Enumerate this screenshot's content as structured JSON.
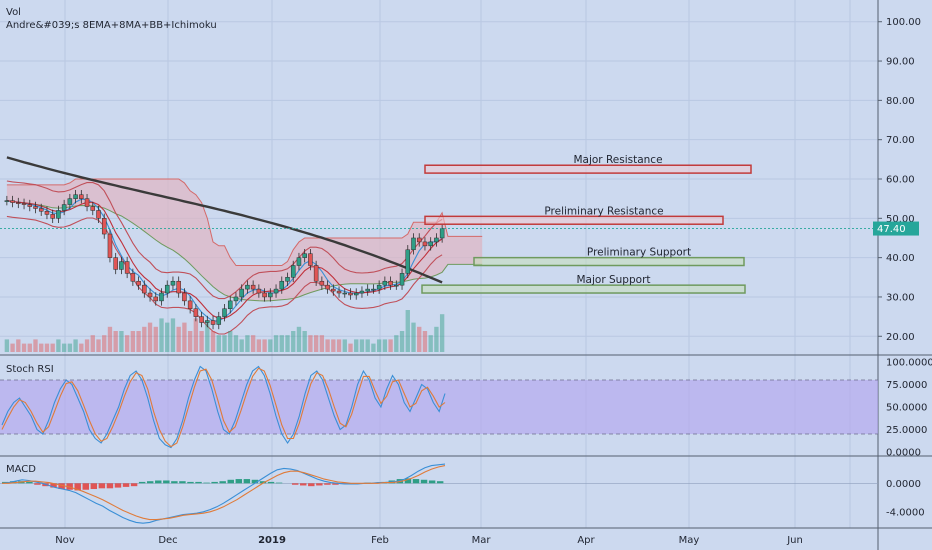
{
  "legend": {
    "vol_label": "Vol",
    "indicator_label": "Andre&#039;s 8EMA+8MA+BB+Ichimoku"
  },
  "colors": {
    "background": "#ccd9ef",
    "grid": "#b9c8e2",
    "up_candle": "#2e9e86",
    "down_candle": "#e05555",
    "cloud_fill": "#e0b5c3",
    "cloud_line": "#d46a6a",
    "ma_dark": "#3a3a3a",
    "stoch_band": "#b3a6ee",
    "price_tag": "#26a69a",
    "resistance": "#c23a3a",
    "support": "#6f9a5e"
  },
  "chart_data": [
    {
      "type": "candlestick",
      "pane": "price",
      "x_labels": [
        "Nov",
        "Dec",
        "2019",
        "Feb",
        "Mar",
        "Apr",
        "May",
        "Jun"
      ],
      "y_ticks": [
        "100.00",
        "90.00",
        "80.00",
        "70.00",
        "60.00",
        "50.00",
        "40.00",
        "30.00",
        "20.00"
      ],
      "ylim": [
        16,
        104
      ],
      "last_price": "47.40",
      "last_value": 47.4,
      "closes": [
        54.5,
        54,
        53.8,
        53.5,
        53,
        52.5,
        51.8,
        51,
        50,
        52,
        53.5,
        55,
        56,
        55,
        53,
        52,
        50,
        46,
        40,
        37,
        39,
        36,
        34,
        33,
        31,
        30,
        29,
        31,
        33,
        34,
        31,
        29,
        27,
        25,
        23.5,
        24,
        23,
        25,
        27,
        29,
        30,
        32,
        33,
        32,
        31,
        30,
        31,
        32,
        34,
        35,
        38,
        40,
        41,
        38,
        34,
        33,
        32,
        31.5,
        31,
        31,
        30.5,
        31,
        31.5,
        32,
        32,
        33,
        34,
        33,
        33,
        36,
        42,
        45,
        44,
        43,
        44,
        45,
        47.4
      ],
      "volume": [
        3,
        2,
        3,
        2,
        2,
        3,
        2,
        2,
        2,
        3,
        2,
        2,
        3,
        2,
        3,
        4,
        3,
        4,
        6,
        5,
        5,
        4,
        5,
        5,
        6,
        7,
        6,
        8,
        7,
        8,
        6,
        7,
        5,
        8,
        5,
        7,
        5,
        4,
        4,
        5,
        4,
        3,
        4,
        4,
        3,
        3,
        3,
        4,
        4,
        4,
        5,
        6,
        5,
        4,
        4,
        4,
        3,
        3,
        3,
        3,
        2,
        3,
        3,
        3,
        2,
        3,
        3,
        3,
        4,
        5,
        10,
        7,
        6,
        5,
        4,
        6,
        9
      ],
      "zones": [
        {
          "name": "Major Resistance",
          "low": 61.5,
          "high": 63.5
        },
        {
          "name": "Preliminary Resistance",
          "low": 48.5,
          "high": 50.5
        },
        {
          "name": "Preliminary Support",
          "low": 38,
          "high": 40
        },
        {
          "name": "Major Support",
          "low": 31,
          "high": 33
        }
      ]
    },
    {
      "type": "line",
      "pane": "Stoch RSI",
      "title": "Stoch RSI",
      "y_ticks": [
        "100.0000",
        "75.0000",
        "50.0000",
        "25.0000",
        "0.0000"
      ],
      "ylim": [
        0,
        100
      ],
      "band": [
        20,
        80
      ],
      "series": [
        {
          "values": [
            30,
            45,
            55,
            60,
            50,
            40,
            25,
            20,
            35,
            55,
            70,
            80,
            75,
            60,
            45,
            25,
            15,
            10,
            20,
            35,
            50,
            70,
            85,
            90,
            80,
            60,
            35,
            15,
            8,
            5,
            15,
            35,
            60,
            80,
            95,
            90,
            70,
            45,
            25,
            20,
            35,
            55,
            75,
            90,
            95,
            85,
            65,
            40,
            20,
            10,
            20,
            40,
            65,
            85,
            90,
            80,
            60,
            40,
            25,
            30,
            50,
            75,
            90,
            80,
            60,
            50,
            70,
            85,
            75,
            55,
            45,
            60,
            75,
            70,
            55,
            45,
            65
          ]
        },
        {
          "values": [
            25,
            38,
            50,
            58,
            55,
            45,
            32,
            22,
            28,
            45,
            62,
            76,
            78,
            68,
            52,
            35,
            20,
            12,
            15,
            28,
            44,
            62,
            78,
            88,
            85,
            70,
            45,
            25,
            12,
            6,
            10,
            28,
            50,
            72,
            90,
            92,
            80,
            58,
            35,
            22,
            28,
            46,
            66,
            84,
            93,
            90,
            74,
            52,
            30,
            15,
            15,
            32,
            55,
            76,
            88,
            85,
            70,
            50,
            32,
            28,
            42,
            64,
            84,
            84,
            68,
            54,
            62,
            78,
            80,
            65,
            50,
            54,
            68,
            72,
            62,
            50,
            55
          ]
        }
      ]
    },
    {
      "type": "line",
      "pane": "MACD",
      "title": "MACD",
      "y_ticks": [
        "0.0000",
        "-4.0000"
      ],
      "ylim": [
        -6,
        3
      ],
      "series": [
        {
          "values": [
            0,
            0.1,
            0.3,
            0.5,
            0.4,
            0.2,
            0,
            -0.3,
            -0.6,
            -0.8,
            -1,
            -1.3,
            -1.8,
            -2.3,
            -2.8,
            -3.2,
            -3.8,
            -4.3,
            -4.8,
            -5.2,
            -5.5,
            -5.6,
            -5.5,
            -5.2,
            -5,
            -4.8,
            -4.6,
            -4.4,
            -4.3,
            -4.2,
            -4,
            -3.7,
            -3.3,
            -2.8,
            -2.2,
            -1.6,
            -1,
            -0.4,
            0.2,
            0.8,
            1.4,
            1.9,
            2.1,
            2,
            1.8,
            1.4,
            1,
            0.6,
            0.3,
            0.1,
            0,
            -0.1,
            -0.1,
            -0.1,
            0,
            0,
            0.1,
            0.1,
            0.2,
            0.3,
            0.6,
            1.1,
            1.7,
            2.2,
            2.5,
            2.6,
            2.7
          ]
        },
        {
          "values": [
            0,
            0,
            0.1,
            0.2,
            0.3,
            0.3,
            0.2,
            0.1,
            -0.1,
            -0.3,
            -0.5,
            -0.8,
            -1.1,
            -1.5,
            -1.9,
            -2.3,
            -2.8,
            -3.3,
            -3.8,
            -4.2,
            -4.6,
            -4.9,
            -5.1,
            -5.1,
            -5,
            -4.9,
            -4.7,
            -4.5,
            -4.4,
            -4.3,
            -4.2,
            -4,
            -3.7,
            -3.3,
            -2.8,
            -2.3,
            -1.7,
            -1.1,
            -0.5,
            0.1,
            0.6,
            1.1,
            1.5,
            1.7,
            1.7,
            1.5,
            1.2,
            0.9,
            0.6,
            0.4,
            0.2,
            0.1,
            0,
            0,
            0,
            0,
            0,
            0.1,
            0.1,
            0.2,
            0.4,
            0.7,
            1.1,
            1.6,
            2,
            2.3,
            2.5
          ]
        }
      ],
      "histogram": [
        0.2,
        0.3,
        0.3,
        0.2,
        -0.2,
        -0.4,
        -0.6,
        -0.8,
        -0.9,
        -1,
        -0.9,
        -0.8,
        -0.7,
        -0.7,
        -0.6,
        -0.5,
        -0.4,
        0.2,
        0.3,
        0.4,
        0.4,
        0.3,
        0.3,
        0.2,
        0.2,
        0.1,
        0.2,
        0.3,
        0.5,
        0.6,
        0.6,
        0.5,
        0.3,
        0.2,
        0.1,
        0,
        -0.2,
        -0.3,
        -0.4,
        -0.3,
        -0.2,
        -0.2,
        -0.1,
        -0.1,
        0,
        0.1,
        0.1,
        0.2,
        0.4,
        0.6,
        0.7,
        0.6,
        0.5,
        0.4,
        0.3
      ]
    }
  ]
}
